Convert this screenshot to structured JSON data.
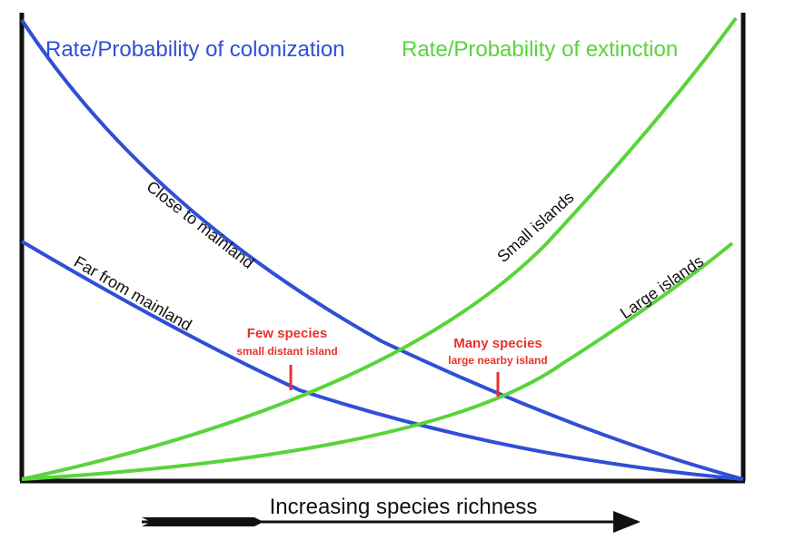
{
  "titles": {
    "colonization": "Rate/Probability of colonization",
    "extinction": "Rate/Probability of extinction"
  },
  "curves": {
    "close": "Close to mainland",
    "far": "Far from mainland",
    "small": "Small islands",
    "large": "Large islands"
  },
  "equilibria": {
    "few": {
      "title": "Few species",
      "subtitle": "small distant island"
    },
    "many": {
      "title": "Many species",
      "subtitle": "large nearby island"
    }
  },
  "x_axis": {
    "label": "Increasing species richness"
  },
  "colors": {
    "colonization": "#2f4fd6",
    "extinction": "#59d43a",
    "equilibrium": "#e8322a",
    "axis": "#111111"
  }
}
